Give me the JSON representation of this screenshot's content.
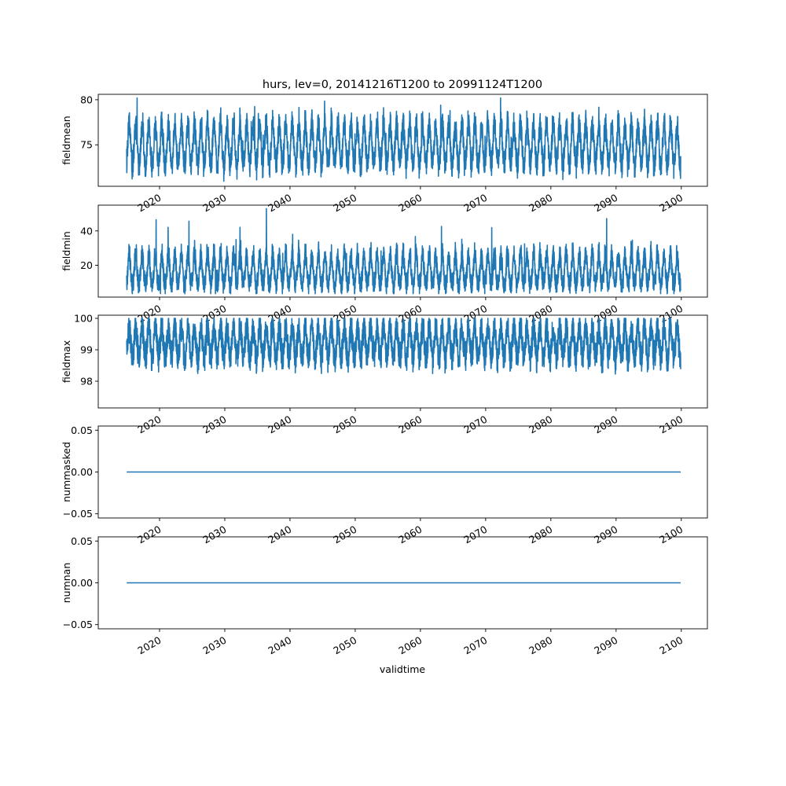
{
  "figure": {
    "title": "hurs, lev=0, 20141216T1200 to 20991124T1200",
    "xlabel": "validtime"
  },
  "chart_data": [
    {
      "type": "line",
      "ylabel": "fieldmean",
      "xlim": [
        2010.6,
        2104.0
      ],
      "ylim": [
        70.4,
        80.6
      ],
      "yticks": [
        75,
        80
      ],
      "yticklabels": [
        "75",
        "80"
      ],
      "xticks": [
        2020,
        2030,
        2040,
        2050,
        2060,
        2070,
        2080,
        2090,
        2100
      ],
      "xticklabels": [
        "2020",
        "2030",
        "2040",
        "2050",
        "2060",
        "2070",
        "2080",
        "2090",
        "2100"
      ],
      "series": [
        {
          "color": "#1f77b4",
          "x_range": [
            2014.96,
            2099.9
          ],
          "baseline": 74.8,
          "summer_peak": 78.0,
          "winter_trough": 72.2,
          "max": 80.2,
          "min": 70.8,
          "noise": 1.3
        }
      ]
    },
    {
      "type": "line",
      "ylabel": "fieldmin",
      "xlim": [
        2010.6,
        2104.0
      ],
      "ylim": [
        1.5,
        55.0
      ],
      "yticks": [
        20,
        40
      ],
      "yticklabels": [
        "20",
        "40"
      ],
      "xticks": [
        2020,
        2030,
        2040,
        2050,
        2060,
        2070,
        2080,
        2090,
        2100
      ],
      "xticklabels": [
        "2020",
        "2030",
        "2040",
        "2050",
        "2060",
        "2070",
        "2080",
        "2090",
        "2100"
      ],
      "series": [
        {
          "color": "#1f77b4",
          "x_range": [
            2014.96,
            2099.9
          ],
          "baseline": 15.0,
          "summer_peak": 30.0,
          "winter_trough": 7.0,
          "max": 53.0,
          "min": 3.5,
          "noise": 5.5
        }
      ]
    },
    {
      "type": "line",
      "ylabel": "fieldmax",
      "xlim": [
        2010.6,
        2104.0
      ],
      "ylim": [
        97.15,
        100.1
      ],
      "yticks": [
        98,
        99,
        100
      ],
      "yticklabels": [
        "98",
        "99",
        "100"
      ],
      "xticks": [
        2020,
        2030,
        2040,
        2050,
        2060,
        2070,
        2080,
        2090,
        2100
      ],
      "xticklabels": [
        "2020",
        "2030",
        "2040",
        "2050",
        "2060",
        "2070",
        "2080",
        "2090",
        "2100"
      ],
      "series": [
        {
          "color": "#1f77b4",
          "x_range": [
            2014.96,
            2099.9
          ],
          "baseline": 99.2,
          "summer_peak": 99.9,
          "winter_trough": 98.6,
          "max": 100.0,
          "min": 97.3,
          "noise": 0.45
        }
      ]
    },
    {
      "type": "line",
      "ylabel": "nummasked",
      "xlim": [
        2010.6,
        2104.0
      ],
      "ylim": [
        -0.055,
        0.055
      ],
      "yticks": [
        -0.05,
        0.0,
        0.05
      ],
      "yticklabels": [
        "−0.05",
        "0.00",
        "0.05"
      ],
      "xticks": [
        2020,
        2030,
        2040,
        2050,
        2060,
        2070,
        2080,
        2090,
        2100
      ],
      "xticklabels": [
        "2020",
        "2030",
        "2040",
        "2050",
        "2060",
        "2070",
        "2080",
        "2090",
        "2100"
      ],
      "series": [
        {
          "color": "#1f77b4",
          "x": [
            2014.96,
            2099.9
          ],
          "y": [
            0.0,
            0.0
          ]
        }
      ]
    },
    {
      "type": "line",
      "ylabel": "numnan",
      "xlim": [
        2010.6,
        2104.0
      ],
      "ylim": [
        -0.055,
        0.055
      ],
      "yticks": [
        -0.05,
        0.0,
        0.05
      ],
      "yticklabels": [
        "−0.05",
        "0.00",
        "0.05"
      ],
      "xticks": [
        2020,
        2030,
        2040,
        2050,
        2060,
        2070,
        2080,
        2090,
        2100
      ],
      "xticklabels": [
        "2020",
        "2030",
        "2040",
        "2050",
        "2060",
        "2070",
        "2080",
        "2090",
        "2100"
      ],
      "series": [
        {
          "color": "#1f77b4",
          "x": [
            2014.96,
            2099.9
          ],
          "y": [
            0.0,
            0.0
          ]
        }
      ]
    }
  ]
}
